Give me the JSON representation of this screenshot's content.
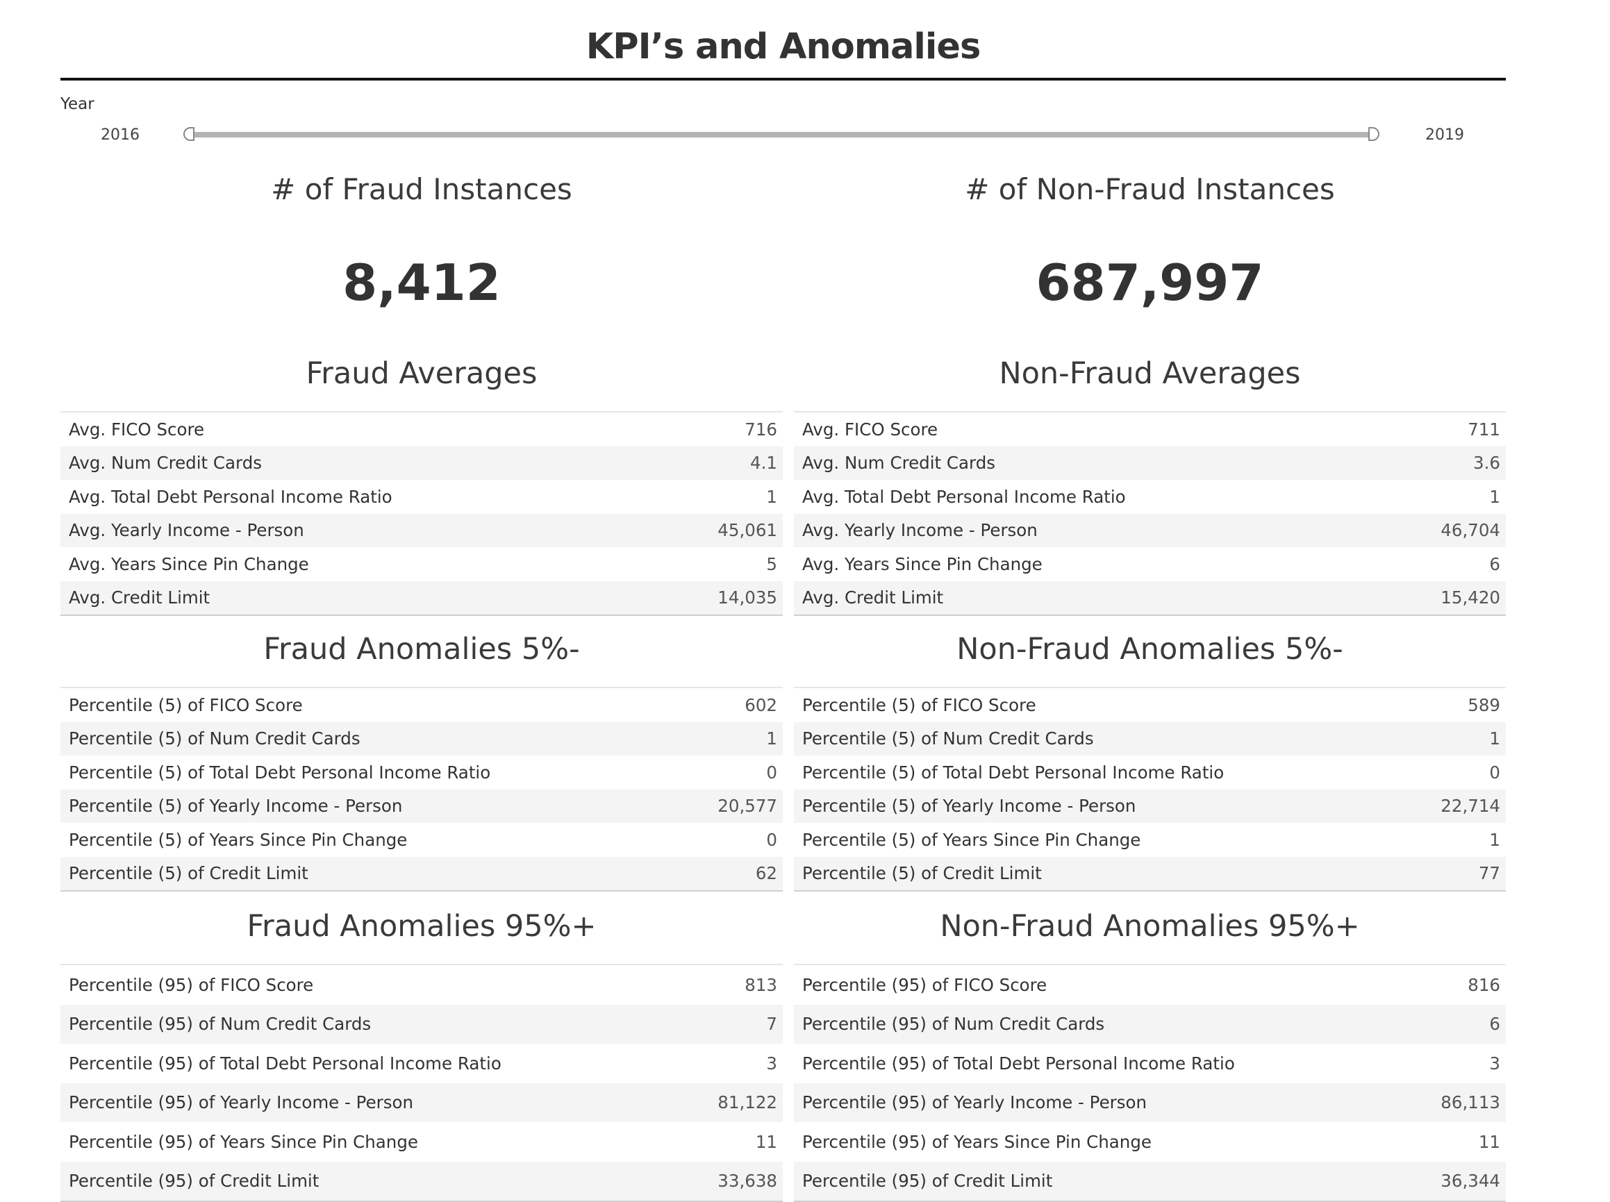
{
  "title": "KPI’s and Anomalies",
  "filter": {
    "label": "Year",
    "min_label": "2016",
    "max_label": "2019"
  },
  "fraud": {
    "instances_title": "# of Fraud Instances",
    "instances_value": "8,412",
    "averages_title": "Fraud Averages",
    "averages": [
      {
        "label": "Avg. FICO Score",
        "value": "716"
      },
      {
        "label": "Avg. Num Credit Cards",
        "value": "4.1"
      },
      {
        "label": "Avg. Total Debt Personal Income Ratio",
        "value": "1"
      },
      {
        "label": "Avg. Yearly Income - Person",
        "value": "45,061"
      },
      {
        "label": "Avg. Years Since Pin Change",
        "value": "5"
      },
      {
        "label": "Avg. Credit Limit",
        "value": "14,035"
      }
    ],
    "low_title": "Fraud Anomalies 5%-",
    "low": [
      {
        "label": "Percentile (5) of FICO Score",
        "value": "602"
      },
      {
        "label": "Percentile (5) of Num Credit Cards",
        "value": "1"
      },
      {
        "label": "Percentile (5) of Total Debt Personal Income Ratio",
        "value": "0"
      },
      {
        "label": "Percentile (5) of Yearly Income - Person",
        "value": "20,577"
      },
      {
        "label": "Percentile (5) of Years Since Pin Change",
        "value": "0"
      },
      {
        "label": "Percentile (5) of Credit Limit",
        "value": "62"
      }
    ],
    "high_title": "Fraud Anomalies 95%+",
    "high": [
      {
        "label": "Percentile (95) of FICO Score",
        "value": "813"
      },
      {
        "label": "Percentile (95) of Num Credit Cards",
        "value": "7"
      },
      {
        "label": "Percentile (95) of Total Debt Personal Income Ratio",
        "value": "3"
      },
      {
        "label": "Percentile (95) of Yearly Income - Person",
        "value": "81,122"
      },
      {
        "label": "Percentile (95) of Years Since Pin Change",
        "value": "11"
      },
      {
        "label": "Percentile (95) of Credit Limit",
        "value": "33,638"
      }
    ]
  },
  "nonfraud": {
    "instances_title": "# of Non-Fraud Instances",
    "instances_value": "687,997",
    "averages_title": "Non-Fraud Averages",
    "averages": [
      {
        "label": "Avg. FICO Score",
        "value": "711"
      },
      {
        "label": "Avg. Num Credit Cards",
        "value": "3.6"
      },
      {
        "label": "Avg. Total Debt Personal Income Ratio",
        "value": "1"
      },
      {
        "label": "Avg. Yearly Income - Person",
        "value": "46,704"
      },
      {
        "label": "Avg. Years Since Pin Change",
        "value": "6"
      },
      {
        "label": "Avg. Credit Limit",
        "value": "15,420"
      }
    ],
    "low_title": "Non-Fraud Anomalies 5%-",
    "low": [
      {
        "label": "Percentile (5) of FICO Score",
        "value": "589"
      },
      {
        "label": "Percentile (5) of Num Credit Cards",
        "value": "1"
      },
      {
        "label": "Percentile (5) of Total Debt Personal Income Ratio",
        "value": "0"
      },
      {
        "label": "Percentile (5) of Yearly Income - Person",
        "value": "22,714"
      },
      {
        "label": "Percentile (5) of Years Since Pin Change",
        "value": "1"
      },
      {
        "label": "Percentile (5) of Credit Limit",
        "value": "77"
      }
    ],
    "high_title": "Non-Fraud Anomalies 95%+",
    "high": [
      {
        "label": "Percentile (95) of FICO Score",
        "value": "816"
      },
      {
        "label": "Percentile (95) of Num Credit Cards",
        "value": "6"
      },
      {
        "label": "Percentile (95) of Total Debt Personal Income Ratio",
        "value": "3"
      },
      {
        "label": "Percentile (95) of Yearly Income - Person",
        "value": "86,113"
      },
      {
        "label": "Percentile (95) of Years Since Pin Change",
        "value": "11"
      },
      {
        "label": "Percentile (95) of Credit Limit",
        "value": "36,344"
      }
    ]
  }
}
